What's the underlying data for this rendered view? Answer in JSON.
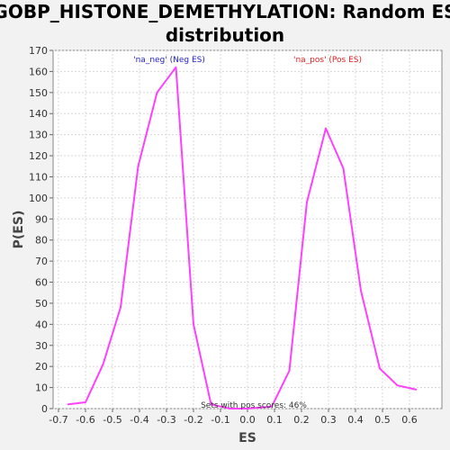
{
  "chart_data": {
    "type": "line",
    "title_line1": "GOBP_HISTONE_DEMETHYLATION: Random ES",
    "title_line2": "distribution",
    "xlabel": "ES",
    "ylabel": "P(ES)",
    "xlim": [
      -0.72,
      0.72
    ],
    "ylim": [
      0,
      170
    ],
    "xticks": [
      -0.7,
      -0.6,
      -0.5,
      -0.4,
      -0.3,
      -0.2,
      -0.1,
      0.0,
      0.1,
      0.2,
      0.3,
      0.4,
      0.5,
      0.6
    ],
    "xtick_labels": [
      "-0.7",
      "-0.6",
      "-0.5",
      "-0.4",
      "-0.3",
      "-0.2",
      "-0.1",
      "0.0",
      "0.1",
      "0.2",
      "0.3",
      "0.4",
      "0.5",
      "0.6"
    ],
    "yticks": [
      0,
      10,
      20,
      30,
      40,
      50,
      60,
      70,
      80,
      90,
      100,
      110,
      120,
      130,
      140,
      150,
      160,
      170
    ],
    "grid": true,
    "line_color": "#ff40ff",
    "series": [
      {
        "x": [
          -0.665,
          -0.6,
          -0.535,
          -0.47,
          -0.405,
          -0.335,
          -0.265,
          -0.2,
          -0.135,
          -0.065,
          0.0,
          0.09,
          0.155,
          0.22,
          0.29,
          0.355,
          0.42,
          0.49,
          0.555,
          0.625
        ],
        "y": [
          2,
          3,
          21,
          48,
          115,
          150,
          162,
          40,
          2,
          0,
          0,
          1,
          18,
          98,
          133,
          114,
          56,
          19,
          11,
          9
        ]
      }
    ],
    "annotations": [
      {
        "text": "'na_neg' (Neg ES)",
        "color": "#2222cc"
      },
      {
        "text": "'na_pos' (Pos ES)",
        "color": "#dd2222"
      },
      {
        "text": "Sets with pos scores: 46%",
        "color": "#333333"
      }
    ]
  }
}
